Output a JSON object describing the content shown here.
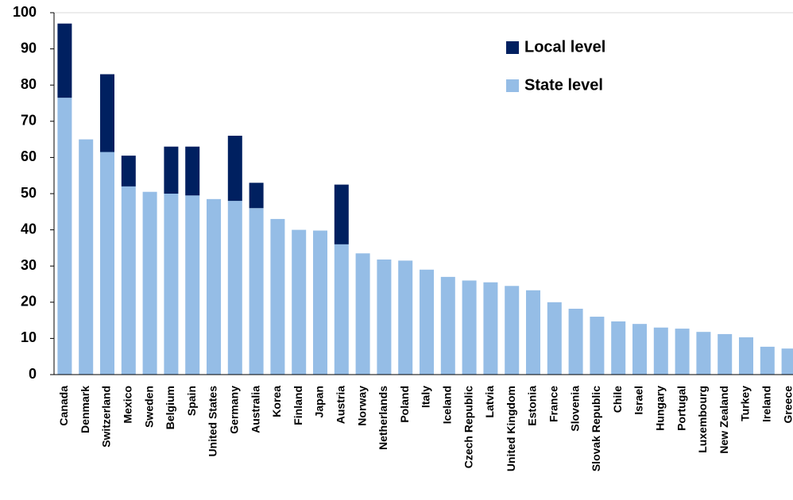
{
  "chart_data": {
    "type": "stacked-bar",
    "categories": [
      "Canada",
      "Denmark",
      "Switzerland",
      "Mexico",
      "Sweden",
      "Belgium",
      "Spain",
      "United States",
      "Germany",
      "Australia",
      "Korea",
      "Finland",
      "Japan",
      "Austria",
      "Norway",
      "Netherlands",
      "Poland",
      "Italy",
      "Iceland",
      "Czech Republic",
      "Latvia",
      "United Kingdom",
      "Estonia",
      "France",
      "Slovenia",
      "Slovak Republic",
      "Chile",
      "Israel",
      "Hungary",
      "Portugal",
      "Luxembourg",
      "New Zealand",
      "Turkey",
      "Ireland",
      "Greece"
    ],
    "series": [
      {
        "name": "Local level",
        "color": "#002060",
        "values": [
          20.5,
          null,
          21.5,
          8.5,
          null,
          13,
          13.5,
          null,
          18,
          7,
          null,
          null,
          null,
          16.5,
          null,
          null,
          null,
          null,
          null,
          null,
          null,
          null,
          null,
          null,
          null,
          null,
          null,
          null,
          null,
          null,
          null,
          null,
          null,
          null,
          null
        ]
      },
      {
        "name": "State level",
        "color": "#95bde6",
        "values": [
          76.5,
          65,
          61.5,
          52,
          50.5,
          50,
          49.5,
          48.5,
          48,
          46,
          43,
          40,
          39.8,
          36,
          33.5,
          31.8,
          31.5,
          29,
          27,
          26,
          25.5,
          24.5,
          23.3,
          20,
          18.2,
          16,
          14.7,
          14,
          13,
          12.7,
          11.8,
          11.2,
          10.3,
          7.7,
          7.2
        ]
      }
    ],
    "ylim": [
      0,
      100
    ],
    "yticks": [
      0,
      10,
      20,
      30,
      40,
      50,
      60,
      70,
      80,
      90,
      100
    ]
  }
}
